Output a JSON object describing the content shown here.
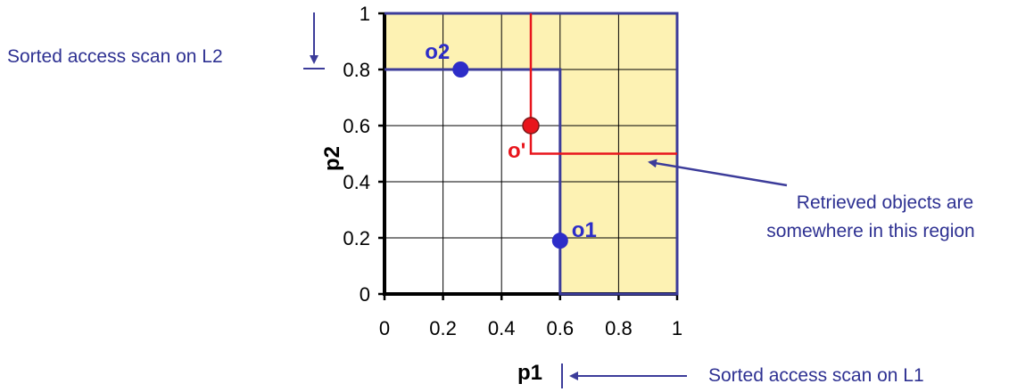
{
  "colors": {
    "region_fill": "#fdf2b3",
    "boundary": "#3c3c9a",
    "point_blue": "#2d2dc8",
    "point_red": "#e8151c",
    "threshold_red": "#e8151c",
    "annotation": "#2e3192",
    "grid": "#000000"
  },
  "chart_data": {
    "type": "scatter",
    "xlabel": "p1",
    "ylabel": "p2",
    "xlim": [
      0,
      1
    ],
    "ylim": [
      0,
      1
    ],
    "grid": true,
    "x_ticks": [
      "0",
      "0.2",
      "0.4",
      "0.6",
      "0.8",
      "1"
    ],
    "y_ticks": [
      "0",
      "0.2",
      "0.4",
      "0.6",
      "0.8",
      "1"
    ],
    "points": [
      {
        "label": "o2",
        "x": 0.26,
        "y": 0.8,
        "color": "#2d2dc8"
      },
      {
        "label": "o1",
        "x": 0.6,
        "y": 0.19,
        "color": "#2d2dc8"
      },
      {
        "label": "o'",
        "x": 0.5,
        "y": 0.6,
        "color": "#e8151c"
      }
    ],
    "shaded_region": {
      "description": "union of p1 >= 0.6 and p2 >= 0.8",
      "x_threshold": 0.6,
      "y_threshold": 0.8
    },
    "threshold_lines": {
      "vertical_x": 0.5,
      "horizontal_y": 0.5
    }
  },
  "annotations": {
    "scan_l2": "Sorted access scan on L2",
    "scan_l1": "Sorted access scan on L1",
    "retrieved_line1": "Retrieved objects are",
    "retrieved_line2": "somewhere in this region"
  }
}
